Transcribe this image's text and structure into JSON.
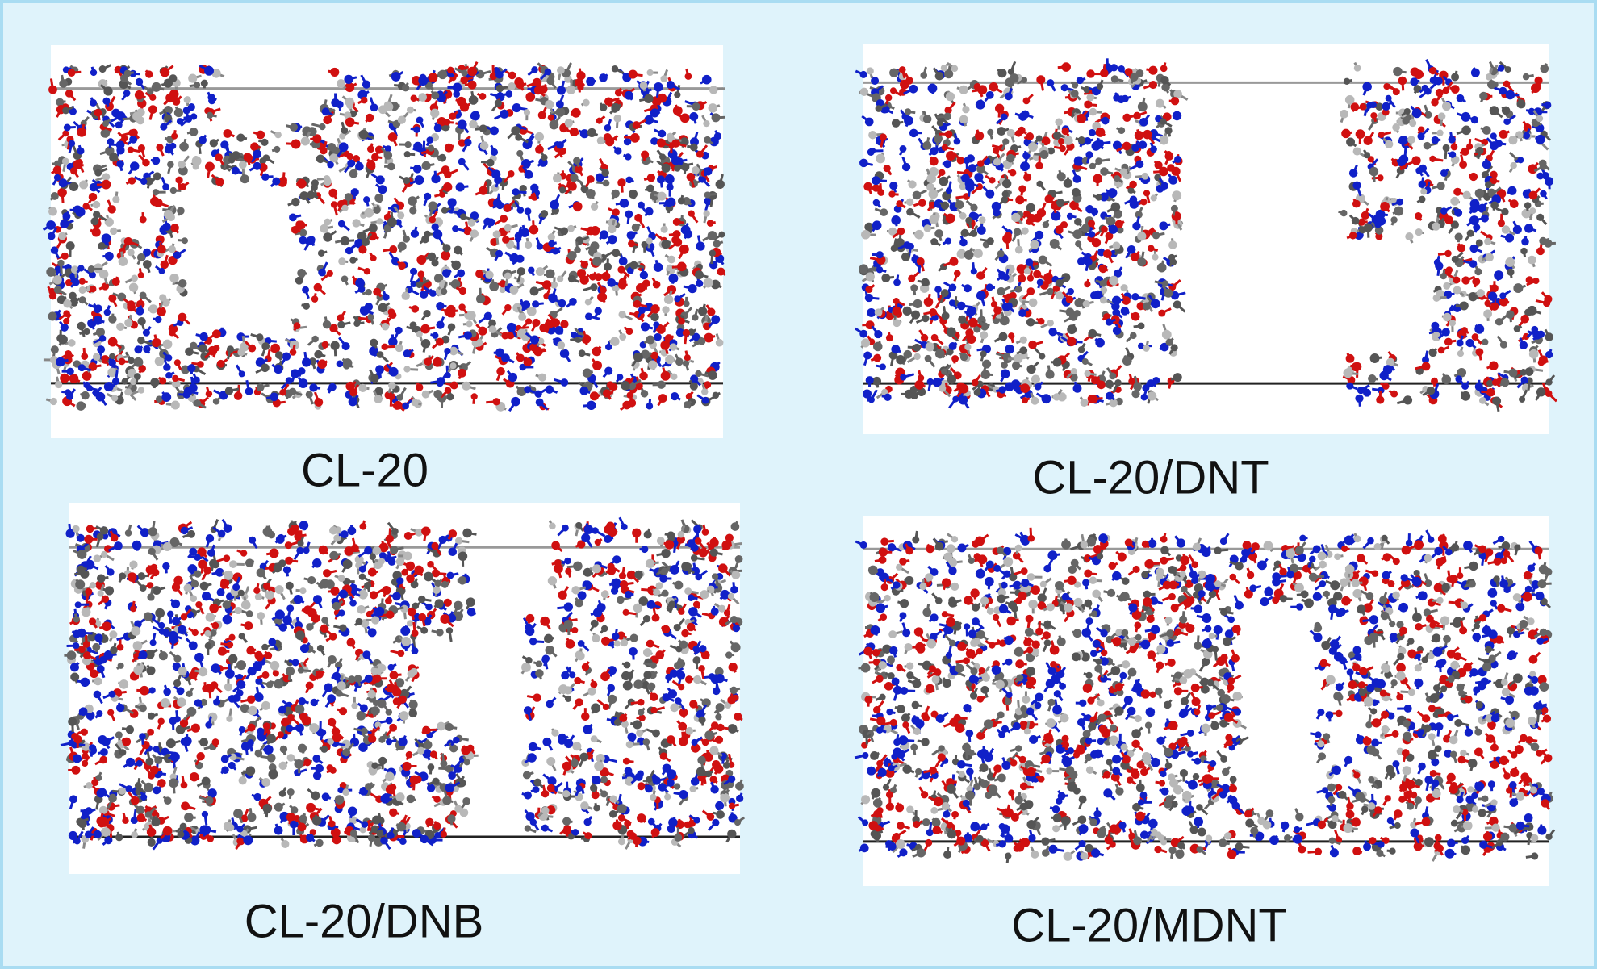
{
  "panels": [
    {
      "label": "CL-20"
    },
    {
      "label": "CL-20/DNT"
    },
    {
      "label": "CL-20/DNB"
    },
    {
      "label": "CL-20/MDNT"
    }
  ]
}
